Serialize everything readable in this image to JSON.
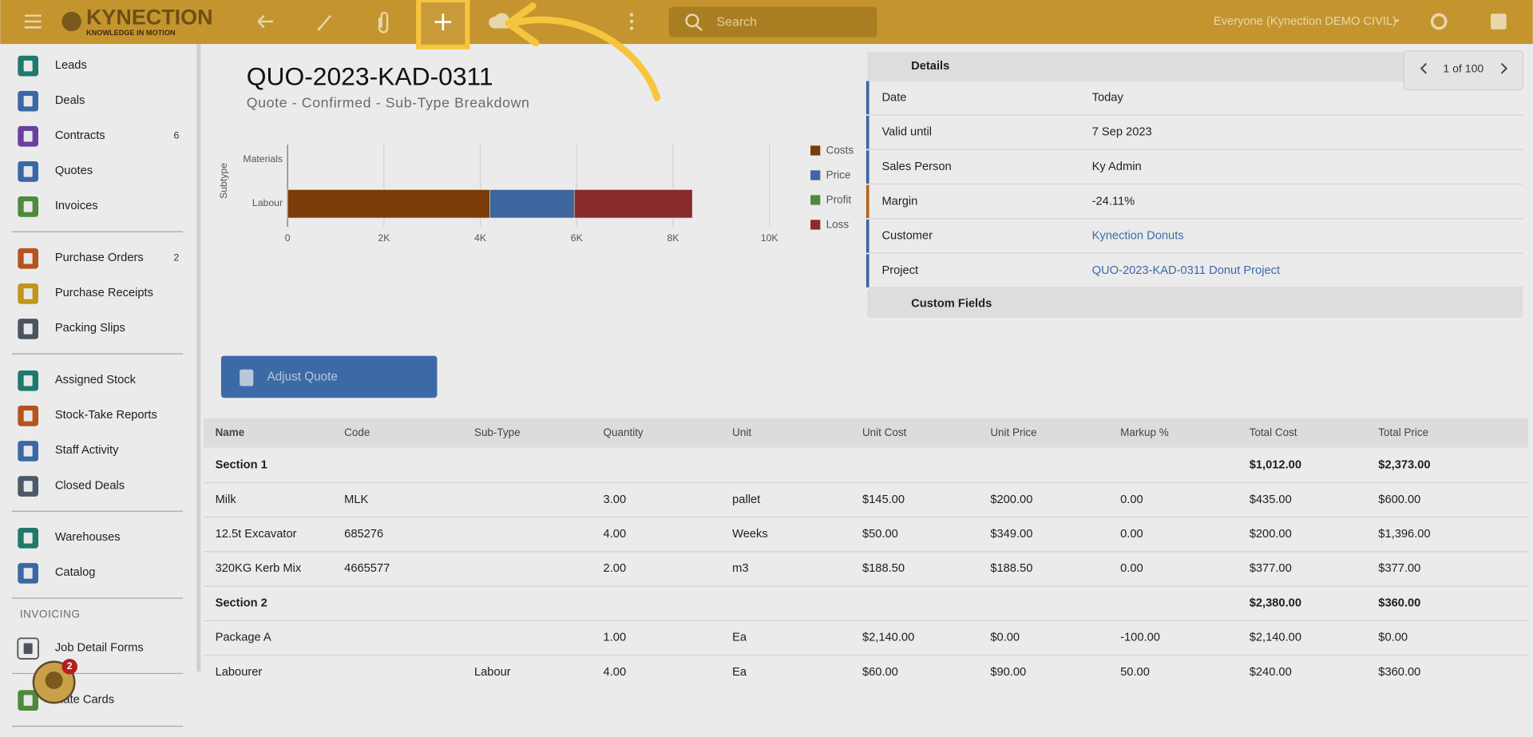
{
  "topbar": {
    "logo": "KYNECTION",
    "logo_tagline": "KNOWLEDGE IN MOTION",
    "search_placeholder": "Search",
    "workspace": "Everyone (Kynection DEMO CIVIL)"
  },
  "sidebar": {
    "items": [
      {
        "label": "Leads"
      },
      {
        "label": "Deals"
      },
      {
        "label": "Contracts",
        "badge": 6
      },
      {
        "label": "Quotes"
      },
      {
        "label": "Invoices"
      },
      {
        "label": "Purchase Orders",
        "badge": 2
      },
      {
        "label": "Purchase Receipts"
      },
      {
        "label": "Packing Slips"
      },
      {
        "label": "Assigned Stock"
      },
      {
        "label": "Stock-Take Reports"
      },
      {
        "label": "Staff Activity"
      },
      {
        "label": "Closed Deals"
      },
      {
        "label": "Warehouses"
      },
      {
        "label": "Catalog"
      },
      {
        "label": "Job Detail Forms"
      },
      {
        "label": "Rate Cards"
      }
    ],
    "section_label": "INVOICING",
    "assistant_badge": 2
  },
  "header": {
    "title": "QUO-2023-KAD-0311",
    "subtitle": "Quote - Confirmed - Sub-Type Breakdown"
  },
  "chart": {
    "type": "bar",
    "orientation": "horizontal",
    "stacked": true,
    "y_label": "Subtype",
    "categories": [
      "Materials",
      "Labour"
    ],
    "series": [
      {
        "name": "Costs",
        "color": "#7b3c08",
        "values": [
          0,
          4200
        ]
      },
      {
        "name": "Price",
        "color": "#3d679e",
        "values": [
          0,
          1750
        ]
      },
      {
        "name": "Profit",
        "color": "#4c8a3b",
        "values": [
          0,
          0
        ]
      },
      {
        "name": "Loss",
        "color": "#8b2a2b",
        "values": [
          0,
          2450
        ]
      }
    ],
    "xlim": [
      0,
      10000
    ],
    "xticks": [
      0,
      {
        "value": 2000,
        "label": "2K"
      },
      {
        "value": 4000,
        "label": "4K"
      },
      {
        "value": 6000,
        "label": "6K"
      },
      {
        "value": 8000,
        "label": "8K"
      },
      {
        "value": 10000,
        "label": "10K"
      }
    ],
    "grid": true
  },
  "details": {
    "title": "Details",
    "rows": [
      {
        "label": "Date",
        "value": "Today"
      },
      {
        "label": "Valid until",
        "value": "7 Sep 2023"
      },
      {
        "label": "Sales Person",
        "value": "Ky Admin"
      },
      {
        "label": "Margin",
        "value": "-24.11%"
      },
      {
        "label": "Customer",
        "value": "Kynection Donuts"
      },
      {
        "label": "Project",
        "value": "QUO-2023-KAD-0311 Donut Project"
      }
    ],
    "custom_fields": "Custom Fields",
    "pager": "1 of 100"
  },
  "button": "Adjust Quote",
  "table": {
    "columns": [
      "Name",
      "Code",
      "Sub-Type",
      "Quantity",
      "Unit",
      "Unit Cost",
      "Unit Price",
      "Markup %",
      "Total Cost",
      "Total Price"
    ],
    "rows": [
      [
        "Section 1",
        null,
        null,
        null,
        null,
        null,
        null,
        null,
        "$1,012.00",
        "$2,373.00"
      ],
      [
        "Milk",
        "MLK",
        null,
        "3.00",
        "pallet",
        "$145.00",
        "$200.00",
        "0.00",
        "$435.00",
        "$600.00"
      ],
      [
        "12.5t Excavator",
        "685276",
        null,
        "4.00",
        "Weeks",
        "$50.00",
        "$349.00",
        "0.00",
        "$200.00",
        "$1,396.00"
      ],
      [
        "320KG Kerb Mix",
        "4665577",
        null,
        "2.00",
        "m3",
        "$188.50",
        "$188.50",
        "0.00",
        "$377.00",
        "$377.00"
      ],
      [
        "Section 2",
        null,
        null,
        null,
        null,
        null,
        null,
        null,
        "$2,380.00",
        "$360.00"
      ],
      [
        "Package A",
        null,
        null,
        "1.00",
        "Ea",
        "$2,140.00",
        "$0.00",
        "-100.00",
        "$2,140.00",
        "$0.00"
      ],
      [
        "Labourer",
        null,
        "Labour",
        "4.00",
        "Ea",
        "$60.00",
        "$90.00",
        "50.00",
        "$240.00",
        "$360.00"
      ]
    ]
  }
}
